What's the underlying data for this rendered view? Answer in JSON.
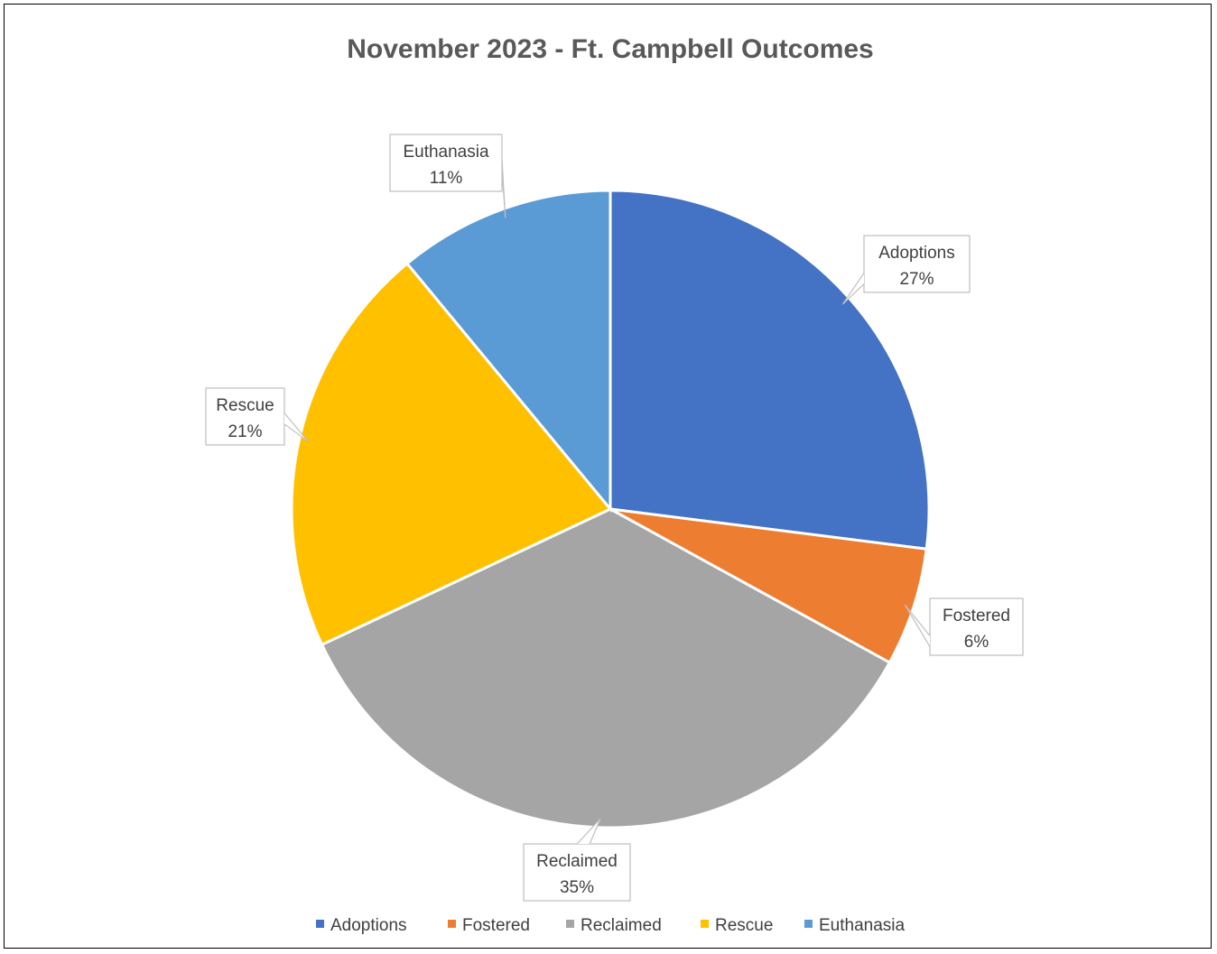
{
  "chart_data": {
    "type": "pie",
    "title": "November 2023 - Ft. Campbell Outcomes",
    "categories": [
      "Adoptions",
      "Fostered",
      "Reclaimed",
      "Rescue",
      "Euthanasia"
    ],
    "values": [
      27,
      6,
      35,
      21,
      11
    ],
    "value_labels": [
      "27%",
      "6%",
      "35%",
      "21%",
      "11%"
    ],
    "colors": [
      "#4472C4",
      "#ED7D31",
      "#A5A5A5",
      "#FFC000",
      "#5B9BD5"
    ],
    "legend": {
      "position": "bottom",
      "entries": [
        "Adoptions",
        "Fostered",
        "Reclaimed",
        "Rescue",
        "Euthanasia"
      ]
    }
  }
}
